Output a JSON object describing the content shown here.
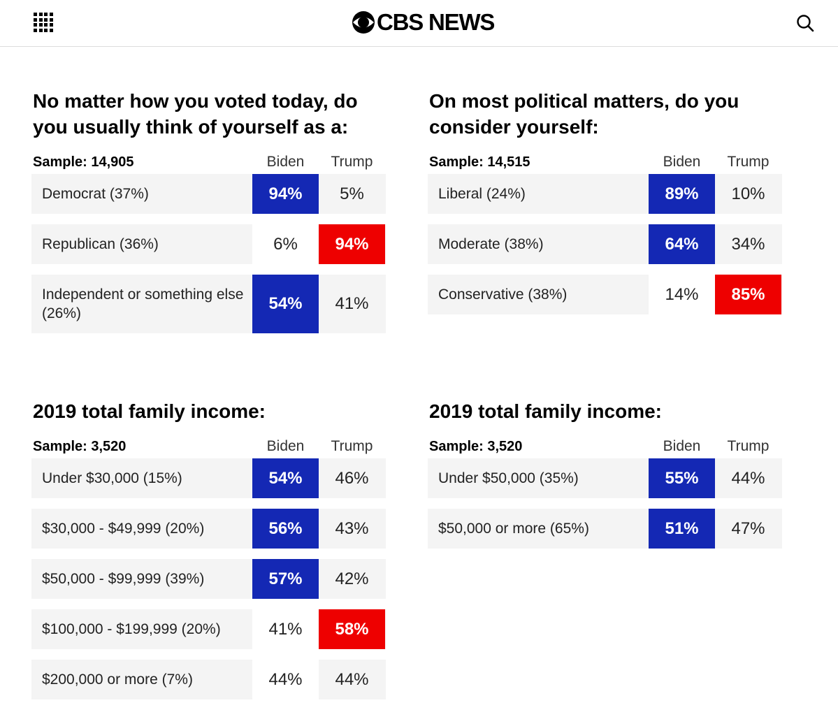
{
  "header": {
    "logo_text": "CBS NEWS",
    "menu_icon": "grid-menu-icon",
    "search_icon": "search-icon"
  },
  "colors": {
    "biden_blue": "#1428b4",
    "trump_red": "#ee0000",
    "row_gray": "#f4f4f4"
  },
  "panels": [
    {
      "title_line1": "No matter how you voted today, do",
      "title_line2": "you usually think of yourself as a:",
      "sample": "Sample: 14,905",
      "col_biden": "Biden",
      "col_trump": "Trump",
      "rows": [
        {
          "label": "Democrat (37%)",
          "biden": "94%",
          "trump": "5%",
          "winner": "biden"
        },
        {
          "label": "Republican (36%)",
          "biden": "6%",
          "trump": "94%",
          "winner": "trump"
        },
        {
          "label": "Independent or something else (26%)",
          "biden": "54%",
          "trump": "41%",
          "winner": "biden"
        }
      ]
    },
    {
      "title_line1": "On most political matters, do you",
      "title_line2": "consider yourself:",
      "sample": "Sample: 14,515",
      "col_biden": "Biden",
      "col_trump": "Trump",
      "rows": [
        {
          "label": "Liberal (24%)",
          "biden": "89%",
          "trump": "10%",
          "winner": "biden"
        },
        {
          "label": "Moderate (38%)",
          "biden": "64%",
          "trump": "34%",
          "winner": "biden"
        },
        {
          "label": "Conservative (38%)",
          "biden": "14%",
          "trump": "85%",
          "winner": "trump"
        }
      ]
    },
    {
      "title_line1": "2019 total family income:",
      "title_line2": "",
      "sample": "Sample: 3,520",
      "col_biden": "Biden",
      "col_trump": "Trump",
      "rows": [
        {
          "label": "Under $30,000 (15%)",
          "biden": "54%",
          "trump": "46%",
          "winner": "biden"
        },
        {
          "label": "$30,000 - $49,999 (20%)",
          "biden": "56%",
          "trump": "43%",
          "winner": "biden"
        },
        {
          "label": "$50,000 - $99,999 (39%)",
          "biden": "57%",
          "trump": "42%",
          "winner": "biden"
        },
        {
          "label": "$100,000 - $199,999 (20%)",
          "biden": "41%",
          "trump": "58%",
          "winner": "trump"
        },
        {
          "label": "$200,000 or more (7%)",
          "biden": "44%",
          "trump": "44%",
          "winner": "none"
        }
      ]
    },
    {
      "title_line1": "2019 total family income:",
      "title_line2": "",
      "sample": "Sample: 3,520",
      "col_biden": "Biden",
      "col_trump": "Trump",
      "rows": [
        {
          "label": "Under $50,000 (35%)",
          "biden": "55%",
          "trump": "44%",
          "winner": "biden"
        },
        {
          "label": "$50,000 or more (65%)",
          "biden": "51%",
          "trump": "47%",
          "winner": "biden"
        }
      ]
    }
  ]
}
